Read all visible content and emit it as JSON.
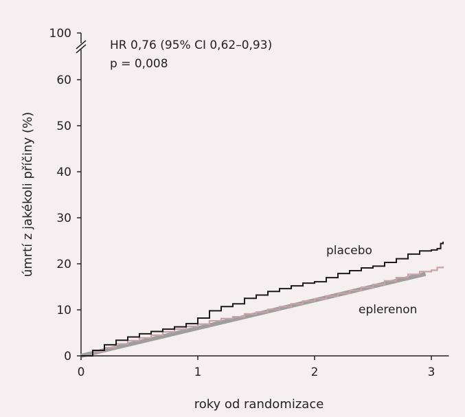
{
  "chart_data": {
    "type": "line",
    "title": "",
    "xlabel": "roky od randomizace",
    "ylabel": "úmrtí z jakékoli příčiny (%)",
    "xlim": [
      0,
      3.15
    ],
    "ylim": [
      0,
      65
    ],
    "y_break_top_tick": "100",
    "x_ticks": [
      0,
      1,
      2,
      3
    ],
    "x_tick_labels": [
      "0",
      "1",
      "2",
      "3"
    ],
    "y_ticks": [
      0,
      10,
      20,
      30,
      40,
      50,
      60
    ],
    "y_tick_labels": [
      "0",
      "10",
      "20",
      "30",
      "40",
      "50",
      "60"
    ],
    "grid": false,
    "annotations": {
      "hr": "HR 0,76 (95% CI 0,62–0,93)",
      "p": "p = 0,008"
    },
    "series": [
      {
        "name": "placebo",
        "color": "#1a1a1a",
        "x": [
          0,
          0.1,
          0.2,
          0.3,
          0.4,
          0.5,
          0.6,
          0.7,
          0.8,
          0.9,
          1.0,
          1.1,
          1.2,
          1.3,
          1.4,
          1.5,
          1.6,
          1.7,
          1.8,
          1.9,
          2.0,
          2.1,
          2.2,
          2.3,
          2.4,
          2.5,
          2.6,
          2.7,
          2.8,
          2.9,
          3.0,
          3.05,
          3.08,
          3.1
        ],
        "y": [
          0,
          1.2,
          2.4,
          3.4,
          4.1,
          4.8,
          5.3,
          5.8,
          6.3,
          7.0,
          8.2,
          9.8,
          10.7,
          11.3,
          12.5,
          13.2,
          14.0,
          14.6,
          15.2,
          15.8,
          16.1,
          17.0,
          17.9,
          18.5,
          19.1,
          19.5,
          20.3,
          21.1,
          22.1,
          22.8,
          23.0,
          23.3,
          24.4,
          24.8
        ]
      },
      {
        "name": "eplerenon",
        "color": "#c8a2a8",
        "x": [
          0,
          0.1,
          0.2,
          0.3,
          0.4,
          0.5,
          0.6,
          0.7,
          0.8,
          0.9,
          1.0,
          1.1,
          1.2,
          1.3,
          1.4,
          1.5,
          1.6,
          1.7,
          1.8,
          1.9,
          2.0,
          2.1,
          2.2,
          2.3,
          2.4,
          2.5,
          2.6,
          2.7,
          2.8,
          2.9,
          3.0,
          3.05,
          3.1
        ],
        "y": [
          0,
          0.9,
          1.8,
          2.6,
          3.3,
          3.9,
          4.5,
          5.2,
          5.8,
          6.4,
          6.9,
          7.6,
          8.1,
          8.5,
          9.1,
          9.5,
          10.1,
          10.7,
          11.3,
          11.9,
          12.4,
          13.0,
          13.6,
          14.2,
          14.9,
          15.5,
          16.3,
          17.0,
          17.7,
          18.3,
          18.6,
          19.2,
          19.4
        ]
      },
      {
        "name": "",
        "color": "#9e9e9e",
        "x": [
          0,
          2.95
        ],
        "y": [
          0,
          17.8
        ]
      }
    ]
  }
}
